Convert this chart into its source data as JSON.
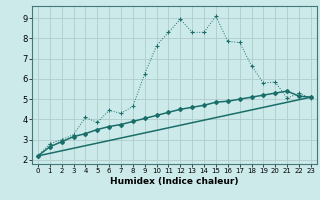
{
  "xlabel": "Humidex (Indice chaleur)",
  "bg_color": "#cceaea",
  "grid_color": "#b0cccc",
  "line_color": "#1a6e6a",
  "line1_x": [
    0,
    1,
    2,
    3,
    4,
    5,
    6,
    7,
    8,
    9,
    10,
    11,
    12,
    13,
    14,
    15,
    16,
    17,
    18,
    19,
    20,
    21,
    22,
    23
  ],
  "line1_y": [
    2.2,
    2.8,
    3.0,
    3.25,
    4.1,
    3.85,
    4.45,
    4.3,
    4.65,
    6.25,
    7.65,
    8.3,
    8.95,
    8.3,
    8.3,
    9.1,
    7.85,
    7.8,
    6.65,
    5.8,
    5.85,
    5.05,
    5.3,
    5.05
  ],
  "line2_x": [
    0,
    1,
    2,
    3,
    4,
    5,
    6,
    7,
    8,
    9,
    10,
    11,
    12,
    13,
    14,
    15,
    16,
    17,
    18,
    19,
    20,
    21,
    22,
    23
  ],
  "line2_y": [
    2.2,
    2.65,
    2.9,
    3.15,
    3.3,
    3.5,
    3.65,
    3.75,
    3.9,
    4.05,
    4.2,
    4.35,
    4.5,
    4.6,
    4.7,
    4.85,
    4.9,
    5.0,
    5.1,
    5.2,
    5.3,
    5.4,
    5.15,
    5.1
  ],
  "line3_x": [
    0,
    23
  ],
  "line3_y": [
    2.2,
    5.1
  ],
  "xlim": [
    -0.5,
    23.5
  ],
  "ylim": [
    1.8,
    9.6
  ],
  "xticks": [
    0,
    1,
    2,
    3,
    4,
    5,
    6,
    7,
    8,
    9,
    10,
    11,
    12,
    13,
    14,
    15,
    16,
    17,
    18,
    19,
    20,
    21,
    22,
    23
  ],
  "yticks": [
    2,
    3,
    4,
    5,
    6,
    7,
    8,
    9
  ],
  "xlabel_fontsize": 6.5,
  "tick_fontsize_x": 5.0,
  "tick_fontsize_y": 6.0
}
